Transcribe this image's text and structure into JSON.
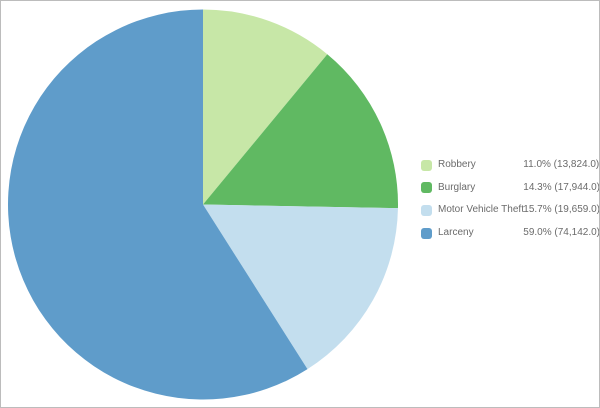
{
  "chart_data": {
    "type": "pie",
    "title": "",
    "categories": [
      "Robbery",
      "Burglary",
      "Motor Vehicle Theft",
      "Larceny"
    ],
    "values": [
      13824.0,
      17944.0,
      19659.0,
      74142.0
    ],
    "percentages": [
      11.0,
      14.3,
      15.7,
      59.0
    ],
    "colors": [
      "#c7e7a7",
      "#60b962",
      "#c3deee",
      "#5f9cca"
    ],
    "start_angle_deg": 0,
    "direction": "clockwise",
    "legend_position": "right",
    "center": [
      203,
      204.5
    ],
    "radius": 195
  },
  "legend": {
    "items": [
      {
        "label": "Robbery",
        "value_text": "11.0% (13,824.0)",
        "color": "#c7e7a7"
      },
      {
        "label": "Burglary",
        "value_text": "14.3% (17,944.0)",
        "color": "#60b962"
      },
      {
        "label": "Motor Vehicle Theft",
        "value_text": "15.7% (19,659.0)",
        "color": "#c3deee"
      },
      {
        "label": "Larceny",
        "value_text": "59.0% (74,142.0)",
        "color": "#5f9cca"
      }
    ]
  },
  "theme": {
    "background": "#ffffff",
    "frame_border": "#bcbcbc",
    "legend_text": "#6b6b6b"
  }
}
